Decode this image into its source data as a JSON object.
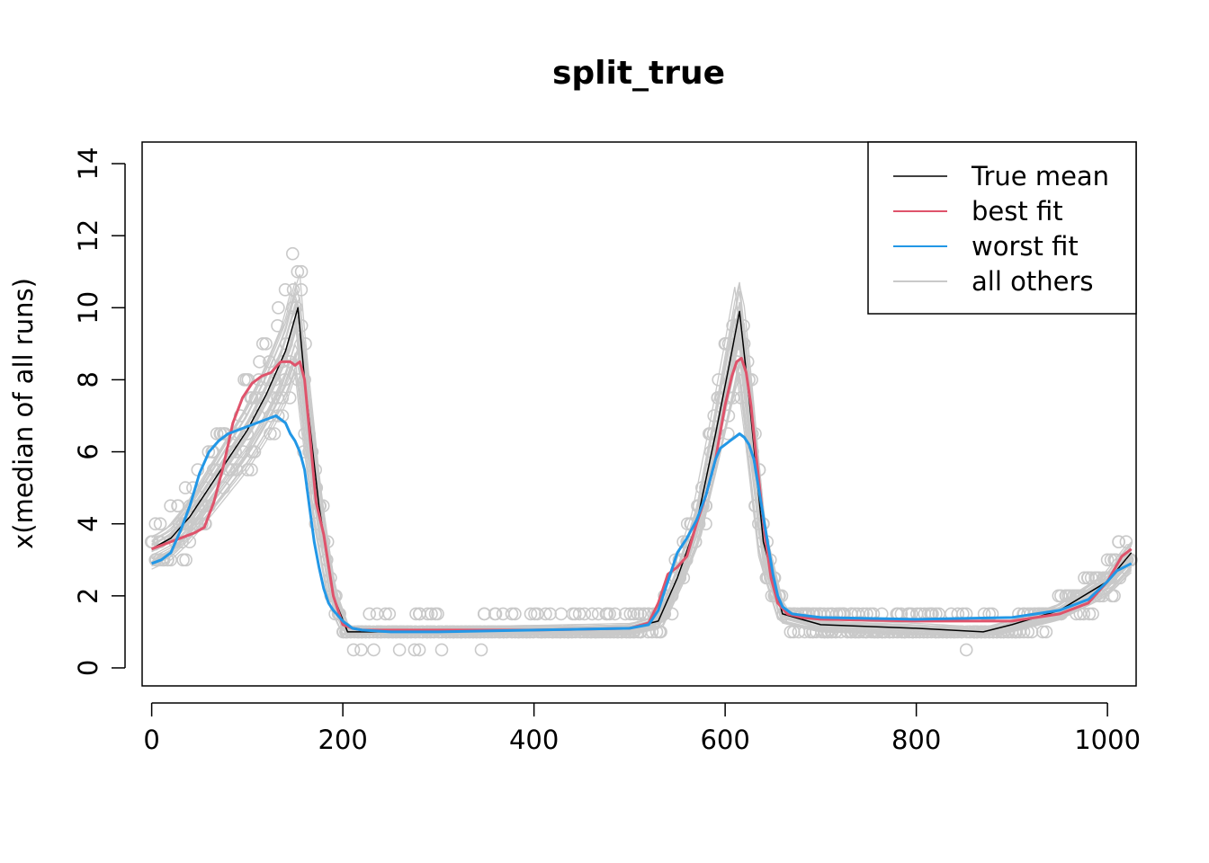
{
  "chart_data": {
    "type": "line",
    "title": "split_true",
    "xlabel": "",
    "ylabel": "x(median of all runs)",
    "xlim": [
      -10,
      1030
    ],
    "ylim": [
      -0.5,
      14.6
    ],
    "x_ticks": [
      0,
      200,
      400,
      600,
      800,
      1000
    ],
    "y_ticks": [
      0,
      2,
      4,
      6,
      8,
      10,
      12,
      14
    ],
    "legend_position": "top-right",
    "colors": {
      "true_mean": "#000000",
      "best_fit": "#DF536B",
      "worst_fit": "#2297E6",
      "all_others": "#C9C9C9",
      "points": "#C9C9C9"
    },
    "legend": [
      {
        "label": "True mean",
        "key": "true_mean"
      },
      {
        "label": "best fit",
        "key": "best_fit"
      },
      {
        "label": "worst fit",
        "key": "worst_fit"
      },
      {
        "label": "all others",
        "key": "all_others"
      }
    ],
    "series": [
      {
        "name": "True mean",
        "key": "true_mean",
        "x": [
          0,
          20,
          40,
          60,
          80,
          100,
          120,
          140,
          153,
          160,
          175,
          190,
          205,
          250,
          400,
          500,
          530,
          550,
          570,
          590,
          605,
          615,
          625,
          640,
          660,
          700,
          800,
          870,
          900,
          950,
          1000,
          1025
        ],
        "y": [
          3.3,
          3.6,
          4.2,
          5.0,
          5.8,
          6.6,
          7.6,
          8.8,
          10.0,
          8.0,
          4.5,
          2.0,
          1.0,
          1.0,
          1.05,
          1.1,
          1.3,
          2.5,
          4.0,
          6.5,
          8.5,
          9.9,
          7.5,
          3.5,
          1.5,
          1.2,
          1.1,
          1.0,
          1.2,
          1.6,
          2.4,
          3.2
        ]
      },
      {
        "name": "best fit",
        "key": "best_fit",
        "x": [
          0,
          15,
          30,
          45,
          55,
          65,
          75,
          85,
          95,
          105,
          115,
          125,
          135,
          145,
          150,
          155,
          160,
          165,
          172,
          180,
          190,
          200,
          210,
          220,
          250,
          300,
          400,
          500,
          520,
          530,
          540,
          550,
          560,
          570,
          580,
          590,
          600,
          607,
          612,
          617,
          622,
          627,
          632,
          637,
          642,
          648,
          655,
          665,
          680,
          700,
          800,
          900,
          950,
          980,
          1000,
          1015,
          1025
        ],
        "y": [
          3.3,
          3.45,
          3.6,
          3.75,
          3.9,
          4.6,
          5.6,
          6.8,
          7.5,
          7.9,
          8.1,
          8.2,
          8.5,
          8.5,
          8.4,
          8.5,
          8.0,
          6.6,
          4.6,
          3.7,
          2.0,
          1.2,
          1.1,
          1.05,
          1.05,
          1.05,
          1.05,
          1.1,
          1.25,
          1.8,
          2.6,
          2.8,
          3.1,
          4.0,
          4.8,
          5.8,
          7.3,
          8.1,
          8.5,
          8.6,
          8.2,
          7.3,
          6.0,
          4.8,
          3.6,
          2.5,
          1.8,
          1.5,
          1.4,
          1.35,
          1.3,
          1.3,
          1.5,
          1.8,
          2.4,
          3.1,
          3.3
        ]
      },
      {
        "name": "worst fit",
        "key": "worst_fit",
        "x": [
          0,
          10,
          20,
          30,
          40,
          50,
          60,
          70,
          80,
          90,
          100,
          110,
          120,
          130,
          140,
          145,
          150,
          155,
          160,
          165,
          170,
          175,
          180,
          185,
          190,
          200,
          210,
          220,
          250,
          300,
          400,
          500,
          520,
          530,
          540,
          550,
          560,
          570,
          580,
          590,
          595,
          600,
          605,
          610,
          615,
          620,
          625,
          630,
          635,
          640,
          645,
          650,
          655,
          660,
          670,
          700,
          800,
          900,
          950,
          980,
          1000,
          1010,
          1025
        ],
        "y": [
          2.9,
          3.0,
          3.2,
          3.8,
          4.5,
          5.4,
          6.0,
          6.3,
          6.5,
          6.6,
          6.7,
          6.8,
          6.9,
          7.0,
          6.8,
          6.5,
          6.3,
          6.0,
          5.5,
          4.5,
          3.5,
          2.8,
          2.2,
          1.8,
          1.6,
          1.3,
          1.1,
          1.05,
          1.0,
          1.0,
          1.05,
          1.1,
          1.2,
          1.6,
          2.4,
          3.2,
          3.6,
          4.1,
          4.8,
          5.8,
          6.1,
          6.2,
          6.3,
          6.4,
          6.5,
          6.4,
          6.2,
          5.8,
          5.0,
          4.2,
          3.4,
          2.6,
          2.0,
          1.7,
          1.5,
          1.4,
          1.35,
          1.4,
          1.6,
          1.9,
          2.4,
          2.7,
          2.9
        ]
      }
    ]
  }
}
